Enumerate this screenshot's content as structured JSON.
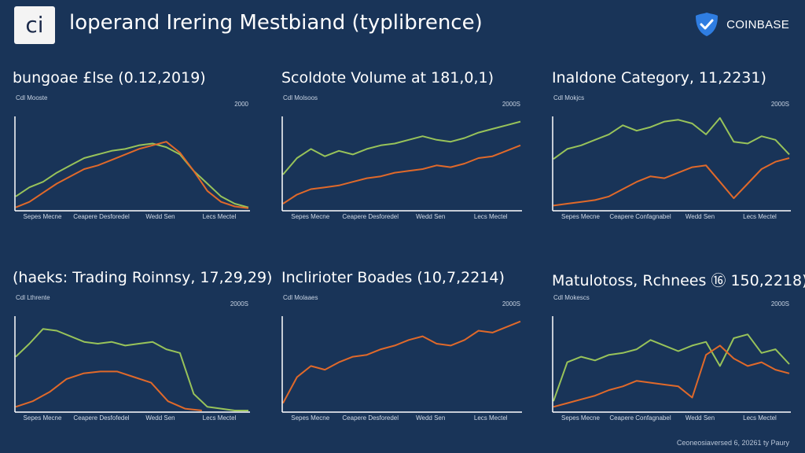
{
  "header": {
    "logo_text": "ci",
    "title": "loperand Irering Mestbiand  (typlibrence)",
    "brand_text": "COINBASE",
    "brand_icon": "check-shield-icon"
  },
  "footer": {
    "text": "Ceoneosiaversed 6, 20261 ty Paury"
  },
  "colors": {
    "background": "#193458",
    "green": "#98c35a",
    "orange": "#e0692a",
    "axis": "#ffffff"
  },
  "chart_data": [
    {
      "type": "line",
      "title": "bungoae £lse (0.12,2019)",
      "unit_label": "Cdl Mooste",
      "ymax_label": "2000",
      "ylim": [
        0,
        100
      ],
      "x_tick_labels": [
        "Sepes Mecne",
        "Ceapere Desforedel",
        "Wedd Sen",
        "Lecs Mectel"
      ],
      "series": [
        {
          "color": "#98c35a",
          "values": [
            14,
            24,
            30,
            40,
            48,
            56,
            60,
            64,
            66,
            70,
            72,
            68,
            60,
            42,
            28,
            14,
            6,
            2
          ]
        },
        {
          "color": "#e0692a",
          "values": [
            2,
            8,
            18,
            28,
            36,
            44,
            48,
            54,
            60,
            66,
            70,
            74,
            62,
            42,
            20,
            8,
            3,
            1
          ]
        }
      ]
    },
    {
      "type": "line",
      "title": "Scoldote Volume at 181,0,1)",
      "unit_label": "Cdl Molsoos",
      "ymax_label": "2000S",
      "ylim": [
        0,
        100
      ],
      "x_tick_labels": [
        "Sepes Mecne",
        "Ceapere Desforedel",
        "Wedd Sen",
        "Lecs Mectel"
      ],
      "series": [
        {
          "color": "#98c35a",
          "values": [
            38,
            56,
            66,
            58,
            64,
            60,
            66,
            70,
            72,
            76,
            80,
            76,
            74,
            78,
            84,
            88,
            92,
            96
          ]
        },
        {
          "color": "#e0692a",
          "values": [
            6,
            16,
            22,
            24,
            26,
            30,
            34,
            36,
            40,
            42,
            44,
            48,
            46,
            50,
            56,
            58,
            64,
            70
          ]
        }
      ]
    },
    {
      "type": "line",
      "title": "Inaldone Category, 11,2231)",
      "unit_label": "Cdl Mokjcs",
      "ymax_label": "2000S",
      "ylim": [
        0,
        100
      ],
      "x_tick_labels": [
        "Sepes Mecne",
        "Ceapere Confagnabel",
        "Wedd Sen",
        "Lecs Mectel"
      ],
      "series": [
        {
          "color": "#98c35a",
          "values": [
            55,
            66,
            70,
            76,
            82,
            92,
            86,
            90,
            96,
            98,
            94,
            82,
            100,
            74,
            72,
            80,
            76,
            60
          ]
        },
        {
          "color": "#e0692a",
          "values": [
            4,
            6,
            8,
            10,
            14,
            22,
            30,
            36,
            34,
            40,
            46,
            48,
            30,
            12,
            28,
            44,
            52,
            56
          ]
        }
      ]
    },
    {
      "type": "line",
      "title": "(haeks: Trading Roinnsy, 17,29,29)",
      "unit_label": "Cdl Lthrente",
      "ymax_label": "2000S",
      "ylim": [
        0,
        100
      ],
      "x_tick_labels": [
        "Sepes Mecne",
        "Ceapere Desfofedel",
        "Wedd Sen",
        "Lecs Mectel"
      ],
      "series": [
        {
          "color": "#98c35a",
          "values": [
            58,
            72,
            88,
            86,
            80,
            74,
            72,
            74,
            70,
            72,
            74,
            66,
            62,
            18,
            4,
            2,
            0,
            0
          ]
        },
        {
          "color": "#e0692a",
          "values": [
            4,
            10,
            20,
            34,
            40,
            42,
            42,
            36,
            30,
            10,
            2,
            0
          ]
        }
      ]
    },
    {
      "type": "line",
      "title": "Inclirioter Boades (10,7,2214)",
      "unit_label": "Cdl Molaaes",
      "ymax_label": "2000S",
      "ylim": [
        0,
        100
      ],
      "x_tick_labels": [
        "Sepes Mecne",
        "Ceapere Desforedel",
        "Wedd Sen",
        "Lecs Mectel"
      ],
      "series": [
        {
          "color": "#e0692a",
          "values": [
            8,
            36,
            48,
            44,
            52,
            58,
            60,
            66,
            70,
            76,
            80,
            72,
            70,
            76,
            86,
            84,
            90,
            96
          ]
        }
      ]
    },
    {
      "type": "line",
      "title": "Matulotoss, Rchnees ⑯ 150,2218) ..",
      "unit_label": "Cdl Mokescs",
      "ymax_label": "2000S",
      "ylim": [
        0,
        100
      ],
      "x_tick_labels": [
        "Sepes Mecne",
        "Ceapere Confagnabel",
        "Wedd Sen",
        "Lecs Mectel"
      ],
      "series": [
        {
          "color": "#98c35a",
          "values": [
            10,
            52,
            58,
            54,
            60,
            62,
            66,
            76,
            70,
            64,
            70,
            74,
            48,
            78,
            82,
            62,
            66,
            50
          ]
        },
        {
          "color": "#e0692a",
          "values": [
            4,
            8,
            12,
            16,
            22,
            26,
            32,
            30,
            28,
            26,
            14,
            60,
            70,
            56,
            48,
            52,
            44,
            40
          ]
        }
      ]
    }
  ]
}
